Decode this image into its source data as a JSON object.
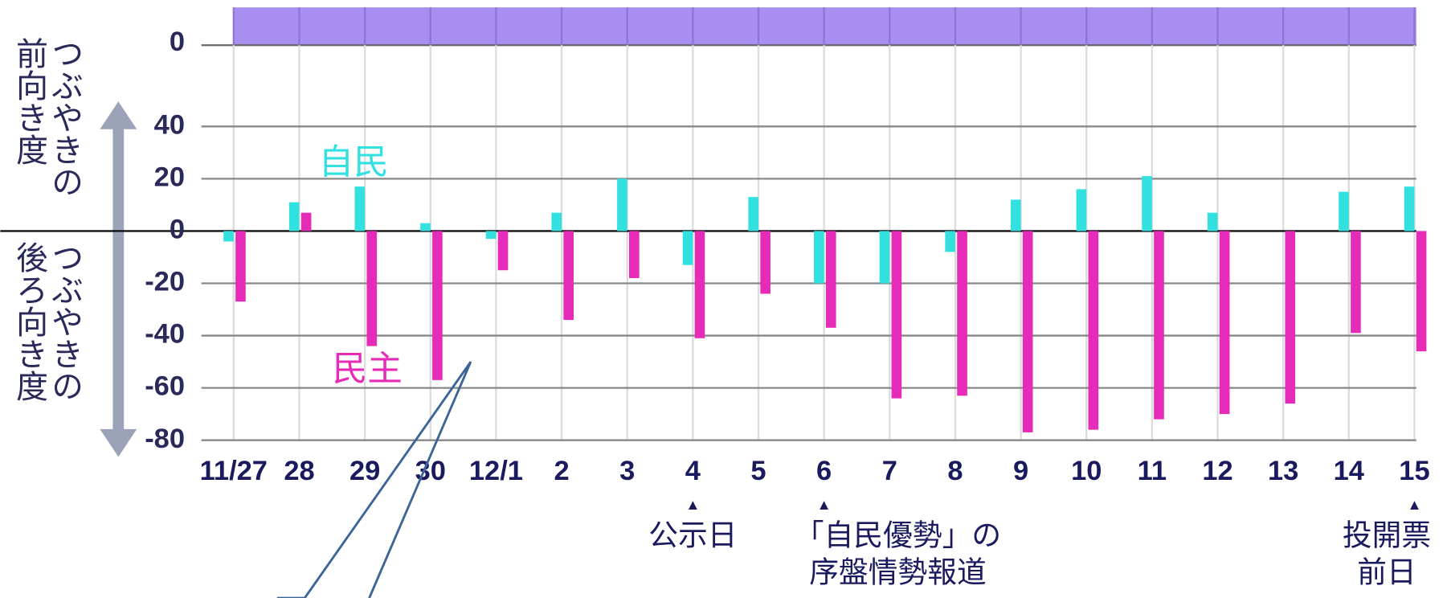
{
  "chart_data": [
    {
      "type": "band",
      "color": "#a78ef0",
      "yticks": [
        0
      ]
    },
    {
      "type": "bar",
      "categories": [
        "11/27",
        "28",
        "29",
        "30",
        "12/1",
        "2",
        "3",
        "4",
        "5",
        "6",
        "7",
        "8",
        "9",
        "10",
        "11",
        "12",
        "13",
        "14",
        "15"
      ],
      "series": [
        {
          "name": "自民",
          "color": "#33e0e0",
          "values": [
            -4,
            11,
            17,
            3,
            -3,
            7,
            20,
            -13,
            13,
            -20,
            -20,
            -8,
            12,
            16,
            21,
            7,
            0,
            15,
            17
          ]
        },
        {
          "name": "民主",
          "color": "#e62bb8",
          "values": [
            -27,
            7,
            -44,
            -57,
            -15,
            -34,
            -18,
            -41,
            -24,
            -37,
            -64,
            -63,
            -77,
            -76,
            -72,
            -70,
            -66,
            -39,
            -46
          ]
        }
      ],
      "ylim": [
        -80,
        40
      ],
      "yticks": [
        40,
        20,
        0,
        -20,
        -40,
        -60,
        -80
      ],
      "grid": true,
      "y_label_upper": "つぶやきの前向き度",
      "y_label_lower": "つぶやきの後ろ向き度",
      "annotations": [
        {
          "category": "4",
          "marker": "▲",
          "lines": [
            "公示日"
          ]
        },
        {
          "category": "6",
          "marker": "▲",
          "lines": [
            "「自民優勢」の",
            "序盤情勢報道"
          ]
        },
        {
          "category": "15",
          "marker": "▲",
          "lines": [
            "投開票",
            "前日"
          ]
        }
      ]
    }
  ]
}
